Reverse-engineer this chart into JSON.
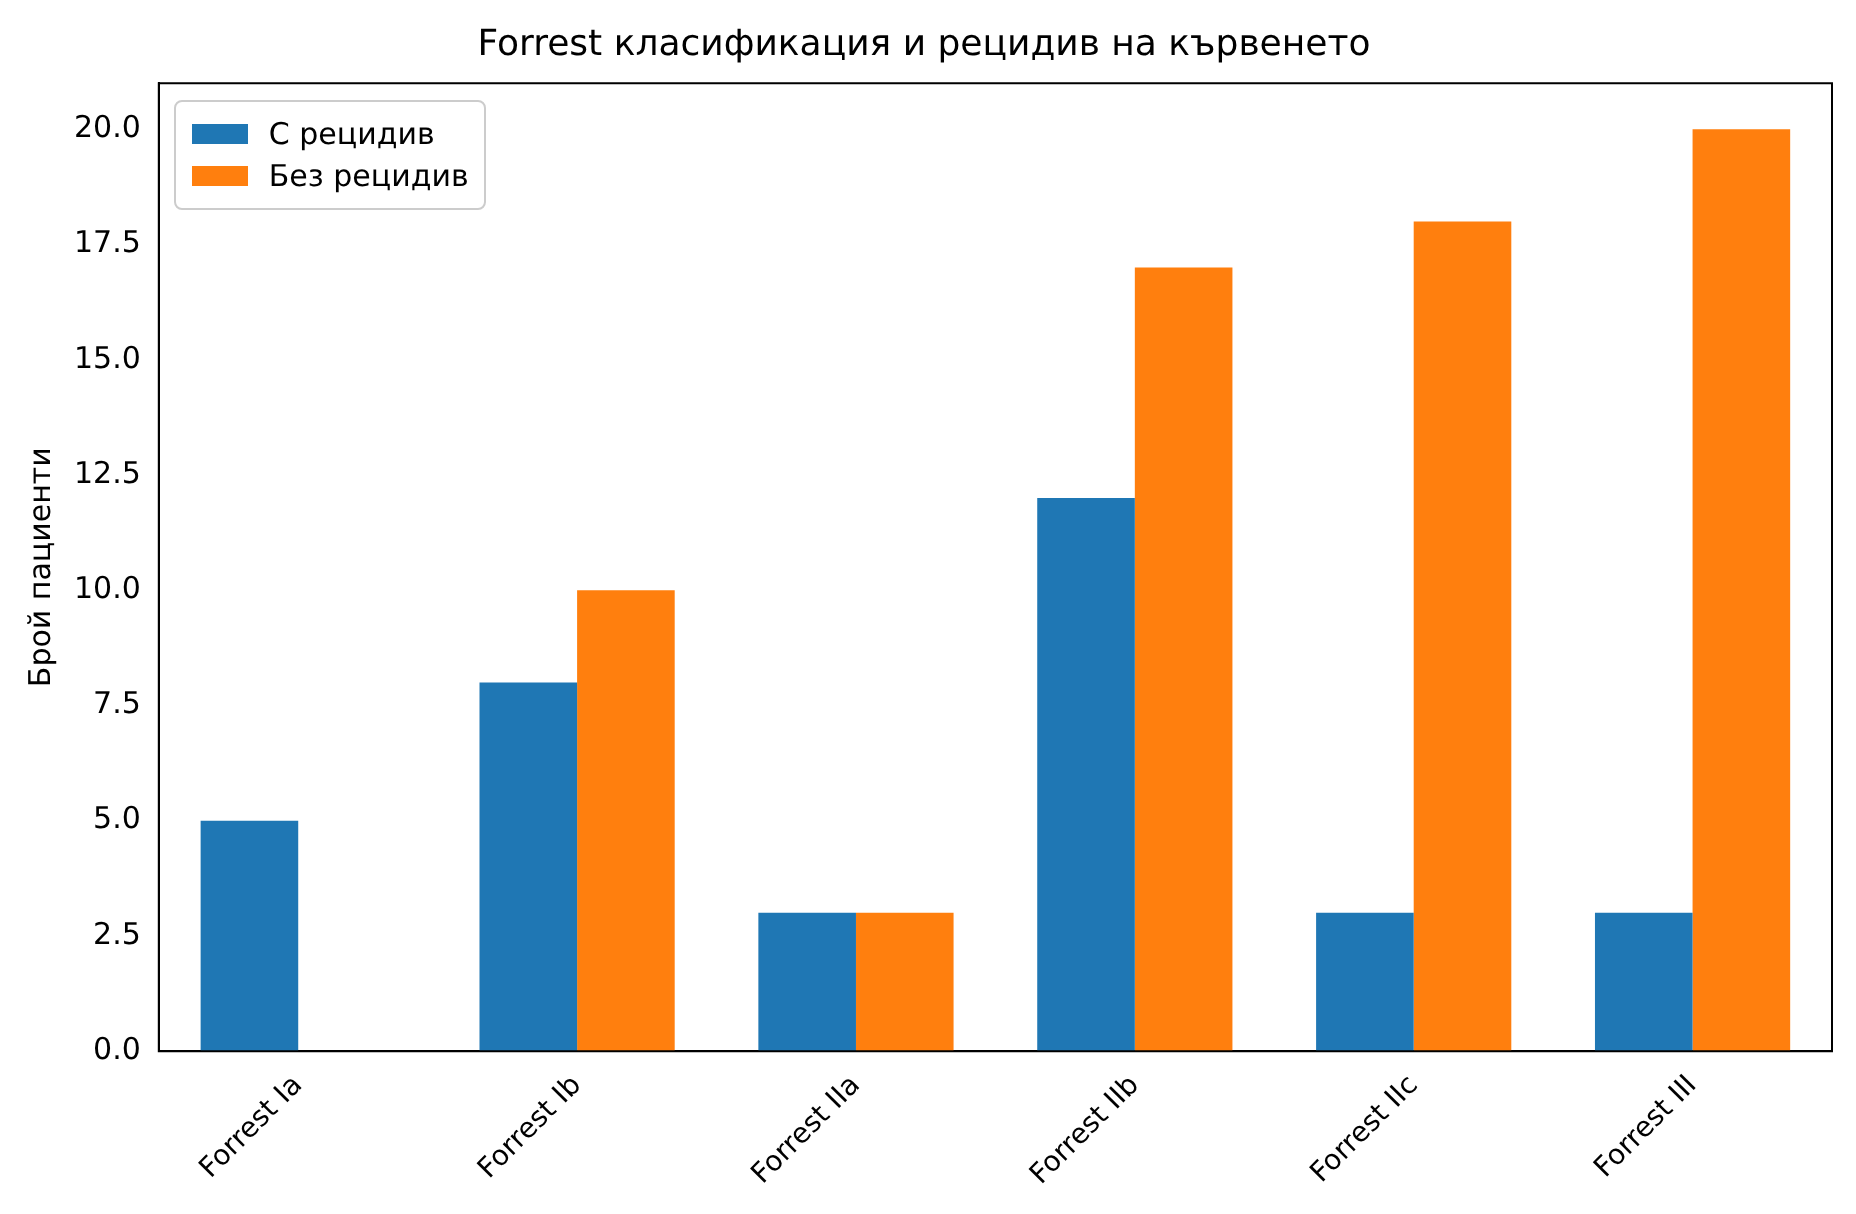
{
  "chart_data": {
    "type": "bar",
    "title": "Forrest класификация и рецидив на кървенето",
    "ylabel": "Брой пациенти",
    "categories": [
      "Forrest Ia",
      "Forrest Ib",
      "Forrest IIa",
      "Forrest IIb",
      "Forrest IIc",
      "Forrest III"
    ],
    "series": [
      {
        "name": "С рецидив",
        "color": "#1f77b4",
        "values": [
          5,
          8,
          3,
          12,
          3,
          3
        ]
      },
      {
        "name": "Без рецидив",
        "color": "#ff7f0e",
        "values": [
          0,
          10,
          3,
          17,
          18,
          20
        ]
      }
    ],
    "ylim": [
      0,
      21
    ],
    "yticks": [
      {
        "value": 0,
        "label": "0.0"
      },
      {
        "value": 2.5,
        "label": "2.5"
      },
      {
        "value": 5,
        "label": "5.0"
      },
      {
        "value": 7.5,
        "label": "7.5"
      },
      {
        "value": 10,
        "label": "10.0"
      },
      {
        "value": 12.5,
        "label": "12.5"
      },
      {
        "value": 15,
        "label": "15.0"
      },
      {
        "value": 17.5,
        "label": "17.5"
      },
      {
        "value": 20,
        "label": "20.0"
      }
    ],
    "grid": false,
    "legend": "top left"
  }
}
